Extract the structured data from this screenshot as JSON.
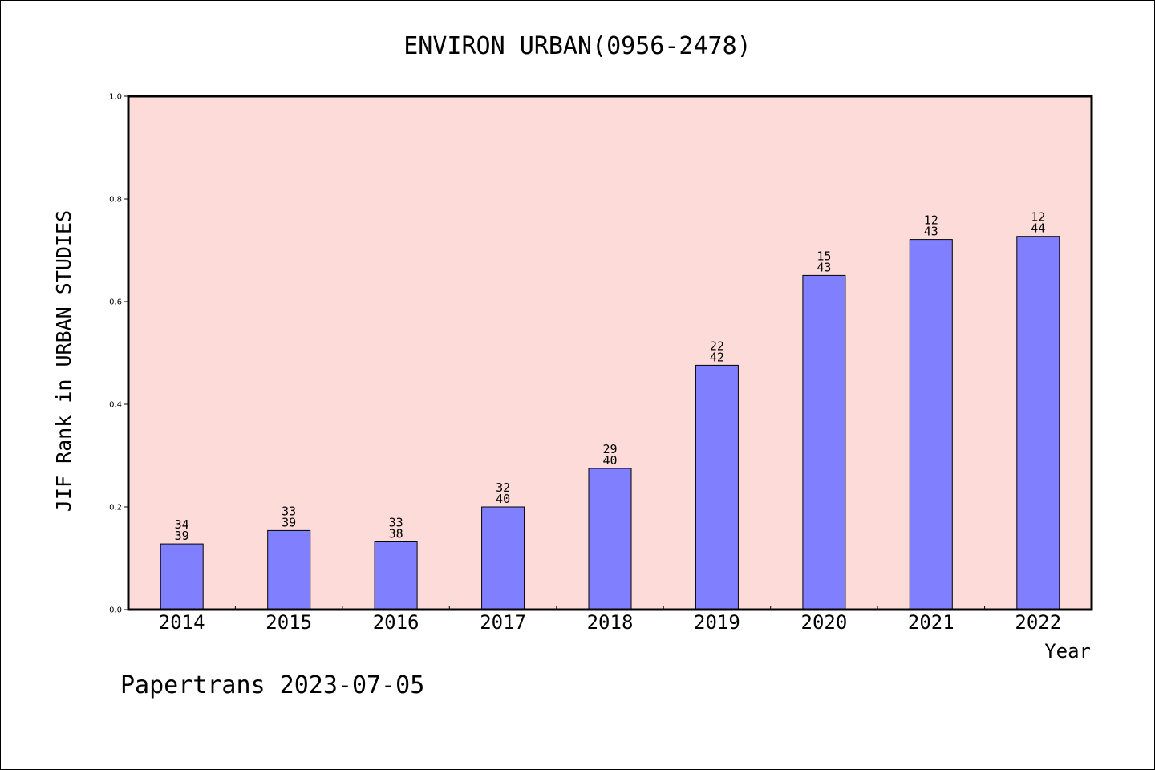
{
  "chart_data": {
    "type": "bar",
    "title": "ENVIRON URBAN(0956-2478)",
    "xlabel": "Year",
    "ylabel": "JIF Rank in URBAN STUDIES",
    "categories": [
      "2014",
      "2015",
      "2016",
      "2017",
      "2018",
      "2019",
      "2020",
      "2021",
      "2022"
    ],
    "values": [
      0.128,
      0.154,
      0.132,
      0.2,
      0.275,
      0.476,
      0.651,
      0.721,
      0.727
    ],
    "rank_labels": [
      {
        "rank": "34",
        "total": "39"
      },
      {
        "rank": "33",
        "total": "39"
      },
      {
        "rank": "33",
        "total": "38"
      },
      {
        "rank": "32",
        "total": "40"
      },
      {
        "rank": "29",
        "total": "40"
      },
      {
        "rank": "22",
        "total": "42"
      },
      {
        "rank": "15",
        "total": "43"
      },
      {
        "rank": "12",
        "total": "43"
      },
      {
        "rank": "12",
        "total": "44"
      }
    ],
    "ylim": [
      0,
      1.0
    ],
    "yticks": [
      "0.0",
      "0.2",
      "0.4",
      "0.6",
      "0.8",
      "1.0"
    ],
    "grid": false,
    "legend": "none",
    "colors": {
      "bar": "#8080ff",
      "plot_background": "#fddbd8",
      "axis": "#000000"
    }
  },
  "footer": {
    "text": "Papertrans 2023-07-05"
  }
}
